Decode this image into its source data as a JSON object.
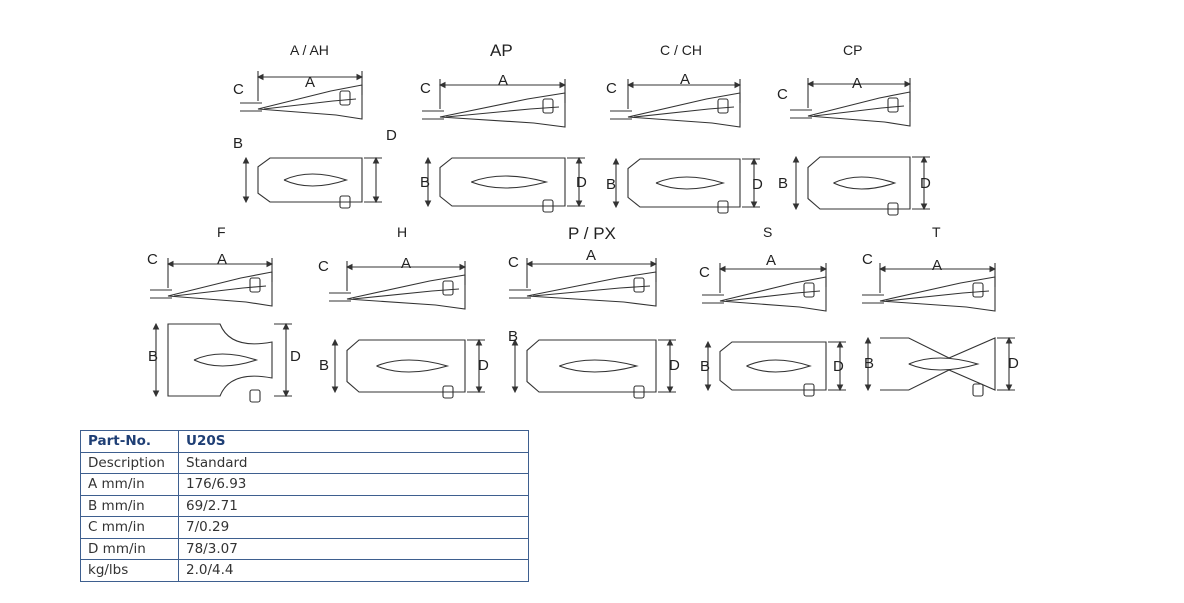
{
  "diagram": {
    "variants": [
      {
        "name": "A / AH",
        "side_label": "C",
        "top_label": "A",
        "plan_left_label": "B",
        "plan_right_label": "D"
      },
      {
        "name": "AP",
        "side_label": "C",
        "top_label": "A",
        "plan_left_label": "B",
        "plan_right_label": "D"
      },
      {
        "name": "C / CH",
        "side_label": "C",
        "top_label": "A",
        "plan_left_label": "B",
        "plan_right_label": "D"
      },
      {
        "name": "CP",
        "side_label": "C",
        "top_label": "A",
        "plan_left_label": "B",
        "plan_right_label": "D"
      },
      {
        "name": "F",
        "side_label": "C",
        "top_label": "A",
        "plan_left_label": "B",
        "plan_right_label": "D"
      },
      {
        "name": "H",
        "side_label": "C",
        "top_label": "A",
        "plan_left_label": "B",
        "plan_right_label": "D"
      },
      {
        "name": "P / PX",
        "side_label": "C",
        "top_label": "A",
        "plan_left_label": "B",
        "plan_right_label": "D"
      },
      {
        "name": "S",
        "side_label": "C",
        "top_label": "A",
        "plan_left_label": "B",
        "plan_right_label": "D"
      },
      {
        "name": "T",
        "side_label": "C",
        "top_label": "A",
        "plan_left_label": "B",
        "plan_right_label": "D"
      }
    ]
  },
  "spec_table": {
    "header": {
      "key": "Part-No.",
      "value": "U20S"
    },
    "rows": [
      {
        "key": "Description",
        "value": "Standard"
      },
      {
        "key": "A mm/in",
        "value": "176/6.93"
      },
      {
        "key": "B mm/in",
        "value": "69/2.71"
      },
      {
        "key": "C mm/in",
        "value": "7/0.29"
      },
      {
        "key": "D mm/in",
        "value": "78/3.07"
      },
      {
        "key": "kg/lbs",
        "value": "2.0/4.4"
      }
    ]
  },
  "colors": {
    "line": "#333333",
    "table_border": "#3e5f8f",
    "header_text": "#1f3f75"
  }
}
